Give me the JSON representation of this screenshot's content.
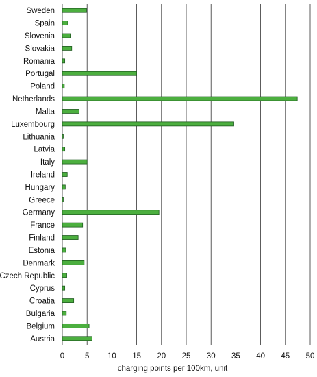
{
  "chart_data": {
    "type": "bar",
    "orientation": "horizontal",
    "categories": [
      "Sweden",
      "Spain",
      "Slovenia",
      "Slovakia",
      "Romania",
      "Portugal",
      "Poland",
      "Netherlands",
      "Malta",
      "Luxembourg",
      "Lithuania",
      "Latvia",
      "Italy",
      "Ireland",
      "Hungary",
      "Greece",
      "Germany",
      "France",
      "Finland",
      "Estonia",
      "Denmark",
      "Czech Republic",
      "Cyprus",
      "Croatia",
      "Bulgaria",
      "Belgium",
      "Austria"
    ],
    "values": [
      4.9,
      1.1,
      1.6,
      1.9,
      0.5,
      15.0,
      0.4,
      47.4,
      3.4,
      34.6,
      0.2,
      0.5,
      5.0,
      1.0,
      0.6,
      0.2,
      19.5,
      4.1,
      3.2,
      0.7,
      4.4,
      0.9,
      0.5,
      2.3,
      0.8,
      5.4,
      6.0
    ],
    "xlabel": "charging points per 100km, unit",
    "xlim": [
      0,
      50
    ],
    "xticks": [
      0,
      5,
      10,
      15,
      20,
      25,
      30,
      35,
      40,
      45,
      50
    ],
    "grid": "vertical",
    "bar_color": "#4caf3f"
  }
}
